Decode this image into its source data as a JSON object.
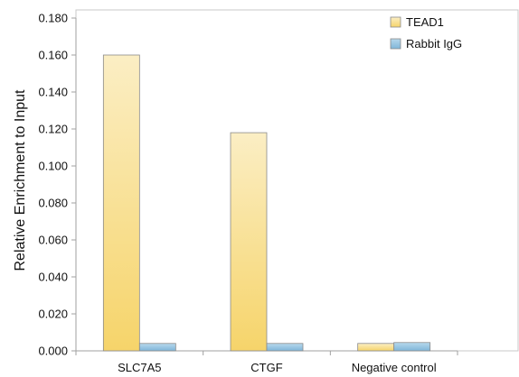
{
  "chart_data": {
    "type": "bar",
    "categories": [
      "SLC7A5",
      "CTGF",
      "Negative control"
    ],
    "series": [
      {
        "name": "TEAD1",
        "values": [
          0.16,
          0.118,
          0.004
        ],
        "color": "#f6d77e"
      },
      {
        "name": "Rabbit IgG",
        "values": [
          0.004,
          0.004,
          0.0045
        ],
        "color": "#8fc0de"
      }
    ],
    "title": "",
    "xlabel": "",
    "ylabel": "Relative Enrichment to Input",
    "ylim": [
      0,
      0.18
    ],
    "yticks": [
      "0.000",
      "0.020",
      "0.040",
      "0.060",
      "0.080",
      "0.100",
      "0.120",
      "0.140",
      "0.160",
      "0.180"
    ],
    "grid": false,
    "legend_position": "top-right"
  }
}
